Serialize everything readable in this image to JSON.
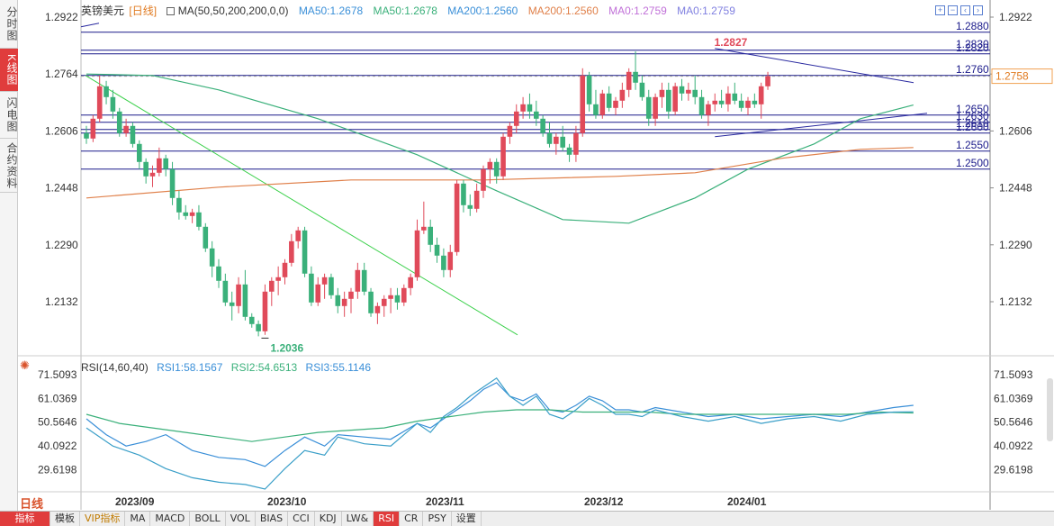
{
  "sidebar": {
    "tabs": [
      {
        "label": "分时图",
        "active": false
      },
      {
        "label": "K线图",
        "active": true
      },
      {
        "label": "闪电图",
        "active": false
      },
      {
        "label": "合约资料",
        "active": false
      }
    ]
  },
  "legend": {
    "symbol": "英镑美元",
    "period": "[日线]",
    "ma_def": "MA(50,50,200,200,0,0)",
    "items": [
      "MA50:1.2678",
      "MA50:1.2678",
      "MA200:1.2560",
      "MA200:1.2560",
      "MA0:1.2759",
      "MA0:1.2759"
    ],
    "colors": [
      "#3a8fd8",
      "#3ab07a",
      "#3a8fd8",
      "#e0804a",
      "#c070d8",
      "#8080e0"
    ]
  },
  "rsi_legend": {
    "def": "RSI(14,60,40)",
    "items": [
      "RSI1:58.1567",
      "RSI2:54.6513",
      "RSI3:55.1146"
    ],
    "colors": [
      "#3a8fd8",
      "#3ab07a",
      "#3a8fd8"
    ]
  },
  "price_axis": {
    "labels": [
      "1.2922",
      "1.2764",
      "1.2606",
      "1.2448",
      "1.2290",
      "1.2132"
    ],
    "current": "1.2758"
  },
  "rsi_axis": {
    "labels": [
      "71.5093",
      "61.0369",
      "50.5646",
      "40.0922",
      "29.6198"
    ]
  },
  "annotations": {
    "high": "1.2827",
    "low": "1.2036"
  },
  "levels": [
    "1.2880",
    "1.2830",
    "1.2820",
    "1.2760",
    "1.2650",
    "1.2630",
    "1.2610",
    "1.2600",
    "1.2550",
    "1.2500"
  ],
  "date_labels": [
    "2023/09",
    "2023/10",
    "2023/11",
    "2023/12",
    "2024/01"
  ],
  "period_button": "日线",
  "bottom_tabs": [
    "指标",
    "模板",
    "VIP指标",
    "MA",
    "MACD",
    "BOLL",
    "VOL",
    "BIAS",
    "CCI",
    "KDJ",
    "LW&",
    "RSI",
    "CR",
    "PSY",
    "设置"
  ],
  "active_bottom_tab": "RSI",
  "colors": {
    "up": "#e04a5a",
    "down": "#3ab07a",
    "level": "#1a1a8a",
    "ma50": "#3ab07a",
    "ma200": "#e0804a",
    "trend": "#2a2aa0",
    "downtrend": "#3ad04a"
  },
  "chart_data": {
    "type": "candlestick",
    "title": "英镑美元 [日线]",
    "ylim": [
      1.2036,
      1.2922
    ],
    "candles": [
      [
        1.26,
        1.262,
        1.257,
        1.2585
      ],
      [
        1.2585,
        1.265,
        1.2575,
        1.264
      ],
      [
        1.264,
        1.276,
        1.263,
        1.273
      ],
      [
        1.273,
        1.2745,
        1.268,
        1.27
      ],
      [
        1.27,
        1.272,
        1.264,
        1.266
      ],
      [
        1.266,
        1.267,
        1.259,
        1.26
      ],
      [
        1.26,
        1.264,
        1.259,
        1.262
      ],
      [
        1.262,
        1.263,
        1.256,
        1.257
      ],
      [
        1.257,
        1.258,
        1.25,
        1.252
      ],
      [
        1.252,
        1.253,
        1.246,
        1.248
      ],
      [
        1.248,
        1.251,
        1.245,
        1.249
      ],
      [
        1.249,
        1.256,
        1.248,
        1.253
      ],
      [
        1.253,
        1.254,
        1.248,
        1.25
      ],
      [
        1.25,
        1.252,
        1.24,
        1.242
      ],
      [
        1.242,
        1.244,
        1.236,
        1.238
      ],
      [
        1.238,
        1.24,
        1.236,
        1.237
      ],
      [
        1.237,
        1.239,
        1.235,
        1.238
      ],
      [
        1.238,
        1.24,
        1.233,
        1.234
      ],
      [
        1.234,
        1.235,
        1.227,
        1.228
      ],
      [
        1.228,
        1.23,
        1.22,
        1.223
      ],
      [
        1.223,
        1.225,
        1.217,
        1.219
      ],
      [
        1.219,
        1.221,
        1.212,
        1.213
      ],
      [
        1.213,
        1.216,
        1.208,
        1.212
      ],
      [
        1.212,
        1.22,
        1.21,
        1.218
      ],
      [
        1.218,
        1.222,
        1.208,
        1.209
      ],
      [
        1.209,
        1.21,
        1.206,
        1.207
      ],
      [
        1.207,
        1.208,
        1.2036,
        1.205
      ],
      [
        1.205,
        1.218,
        1.204,
        1.216
      ],
      [
        1.216,
        1.22,
        1.212,
        1.219
      ],
      [
        1.219,
        1.223,
        1.215,
        1.22
      ],
      [
        1.22,
        1.225,
        1.218,
        1.224
      ],
      [
        1.224,
        1.232,
        1.223,
        1.23
      ],
      [
        1.23,
        1.234,
        1.228,
        1.233
      ],
      [
        1.233,
        1.234,
        1.22,
        1.221
      ],
      [
        1.221,
        1.223,
        1.212,
        1.213
      ],
      [
        1.213,
        1.22,
        1.212,
        1.218
      ],
      [
        1.218,
        1.221,
        1.214,
        1.22
      ],
      [
        1.22,
        1.221,
        1.214,
        1.215
      ],
      [
        1.215,
        1.217,
        1.21,
        1.212
      ],
      [
        1.212,
        1.216,
        1.209,
        1.214
      ],
      [
        1.214,
        1.217,
        1.21,
        1.216
      ],
      [
        1.216,
        1.224,
        1.214,
        1.222
      ],
      [
        1.222,
        1.224,
        1.215,
        1.216
      ],
      [
        1.216,
        1.217,
        1.209,
        1.21
      ],
      [
        1.21,
        1.213,
        1.207,
        1.212
      ],
      [
        1.212,
        1.215,
        1.209,
        1.214
      ],
      [
        1.214,
        1.217,
        1.21,
        1.215
      ],
      [
        1.215,
        1.217,
        1.211,
        1.213
      ],
      [
        1.213,
        1.218,
        1.212,
        1.217
      ],
      [
        1.217,
        1.221,
        1.215,
        1.22
      ],
      [
        1.22,
        1.236,
        1.219,
        1.233
      ],
      [
        1.233,
        1.241,
        1.232,
        1.234
      ],
      [
        1.234,
        1.236,
        1.227,
        1.229
      ],
      [
        1.229,
        1.231,
        1.224,
        1.226
      ],
      [
        1.226,
        1.228,
        1.22,
        1.222
      ],
      [
        1.222,
        1.229,
        1.22,
        1.227
      ],
      [
        1.227,
        1.247,
        1.226,
        1.246
      ],
      [
        1.246,
        1.247,
        1.238,
        1.24
      ],
      [
        1.24,
        1.243,
        1.237,
        1.239
      ],
      [
        1.239,
        1.246,
        1.238,
        1.244
      ],
      [
        1.244,
        1.251,
        1.242,
        1.25
      ],
      [
        1.25,
        1.253,
        1.246,
        1.252
      ],
      [
        1.252,
        1.253,
        1.246,
        1.248
      ],
      [
        1.248,
        1.26,
        1.247,
        1.259
      ],
      [
        1.259,
        1.263,
        1.257,
        1.262
      ],
      [
        1.262,
        1.268,
        1.26,
        1.266
      ],
      [
        1.266,
        1.27,
        1.264,
        1.268
      ],
      [
        1.268,
        1.271,
        1.264,
        1.266
      ],
      [
        1.266,
        1.269,
        1.262,
        1.264
      ],
      [
        1.264,
        1.265,
        1.259,
        1.26
      ],
      [
        1.26,
        1.263,
        1.256,
        1.257
      ],
      [
        1.257,
        1.26,
        1.254,
        1.259
      ],
      [
        1.259,
        1.262,
        1.255,
        1.256
      ],
      [
        1.256,
        1.257,
        1.252,
        1.254
      ],
      [
        1.254,
        1.262,
        1.252,
        1.26
      ],
      [
        1.26,
        1.278,
        1.259,
        1.276
      ],
      [
        1.276,
        1.277,
        1.266,
        1.268
      ],
      [
        1.268,
        1.272,
        1.264,
        1.265
      ],
      [
        1.265,
        1.272,
        1.264,
        1.271
      ],
      [
        1.271,
        1.273,
        1.266,
        1.267
      ],
      [
        1.267,
        1.27,
        1.265,
        1.269
      ],
      [
        1.269,
        1.274,
        1.267,
        1.272
      ],
      [
        1.272,
        1.278,
        1.27,
        1.277
      ],
      [
        1.277,
        1.2827,
        1.272,
        1.274
      ],
      [
        1.274,
        1.276,
        1.269,
        1.27
      ],
      [
        1.27,
        1.272,
        1.262,
        1.264
      ],
      [
        1.264,
        1.271,
        1.262,
        1.27
      ],
      [
        1.27,
        1.274,
        1.267,
        1.272
      ],
      [
        1.272,
        1.274,
        1.264,
        1.266
      ],
      [
        1.266,
        1.274,
        1.265,
        1.273
      ],
      [
        1.273,
        1.275,
        1.269,
        1.271
      ],
      [
        1.271,
        1.274,
        1.269,
        1.272
      ],
      [
        1.272,
        1.276,
        1.268,
        1.27
      ],
      [
        1.27,
        1.272,
        1.264,
        1.265
      ],
      [
        1.265,
        1.269,
        1.262,
        1.268
      ],
      [
        1.268,
        1.271,
        1.266,
        1.269
      ],
      [
        1.269,
        1.272,
        1.267,
        1.268
      ],
      [
        1.268,
        1.273,
        1.266,
        1.271
      ],
      [
        1.271,
        1.274,
        1.268,
        1.269
      ],
      [
        1.269,
        1.271,
        1.266,
        1.267
      ],
      [
        1.267,
        1.27,
        1.265,
        1.269
      ],
      [
        1.269,
        1.271,
        1.267,
        1.268
      ],
      [
        1.268,
        1.274,
        1.264,
        1.273
      ],
      [
        1.273,
        1.277,
        1.272,
        1.2758
      ]
    ],
    "ma50": [
      [
        0,
        1.2764
      ],
      [
        10,
        1.276
      ],
      [
        20,
        1.272
      ],
      [
        35,
        1.264
      ],
      [
        50,
        1.254
      ],
      [
        62,
        1.244
      ],
      [
        72,
        1.236
      ],
      [
        82,
        1.235
      ],
      [
        92,
        1.242
      ],
      [
        100,
        1.25
      ],
      [
        110,
        1.257
      ],
      [
        117,
        1.264
      ],
      [
        125,
        1.2678
      ]
    ],
    "ma200": [
      [
        0,
        1.242
      ],
      [
        20,
        1.245
      ],
      [
        40,
        1.247
      ],
      [
        60,
        1.247
      ],
      [
        80,
        1.248
      ],
      [
        92,
        1.249
      ],
      [
        105,
        1.253
      ],
      [
        117,
        1.2555
      ],
      [
        125,
        1.256
      ]
    ],
    "rsi": {
      "ylim": [
        20,
        80
      ],
      "rsi1": [
        [
          0,
          52
        ],
        [
          3,
          45
        ],
        [
          6,
          40
        ],
        [
          9,
          42
        ],
        [
          12,
          45
        ],
        [
          16,
          38
        ],
        [
          20,
          35
        ],
        [
          24,
          34
        ],
        [
          27,
          31
        ],
        [
          30,
          38
        ],
        [
          33,
          44
        ],
        [
          36,
          40
        ],
        [
          38,
          45
        ],
        [
          42,
          44
        ],
        [
          46,
          43
        ],
        [
          50,
          50
        ],
        [
          52,
          48
        ],
        [
          54,
          52
        ],
        [
          56,
          56
        ],
        [
          58,
          60
        ],
        [
          60,
          65
        ],
        [
          62,
          68
        ],
        [
          64,
          62
        ],
        [
          66,
          60
        ],
        [
          68,
          63
        ],
        [
          70,
          56
        ],
        [
          72,
          55
        ],
        [
          74,
          58
        ],
        [
          76,
          62
        ],
        [
          78,
          60
        ],
        [
          80,
          56
        ],
        [
          82,
          56
        ],
        [
          84,
          55
        ],
        [
          86,
          57
        ],
        [
          90,
          55
        ],
        [
          94,
          53
        ],
        [
          98,
          54
        ],
        [
          102,
          52
        ],
        [
          106,
          53
        ],
        [
          110,
          54
        ],
        [
          114,
          53
        ],
        [
          118,
          55
        ],
        [
          122,
          57
        ],
        [
          125,
          58
        ]
      ],
      "rsi2": [
        [
          0,
          54
        ],
        [
          5,
          50
        ],
        [
          10,
          48
        ],
        [
          15,
          46
        ],
        [
          20,
          44
        ],
        [
          25,
          42
        ],
        [
          30,
          44
        ],
        [
          35,
          46
        ],
        [
          40,
          47
        ],
        [
          45,
          48
        ],
        [
          50,
          51
        ],
        [
          55,
          53
        ],
        [
          60,
          55
        ],
        [
          65,
          56
        ],
        [
          70,
          56
        ],
        [
          75,
          55
        ],
        [
          80,
          55
        ],
        [
          85,
          55
        ],
        [
          90,
          54
        ],
        [
          95,
          54
        ],
        [
          100,
          54
        ],
        [
          105,
          54
        ],
        [
          110,
          54
        ],
        [
          115,
          54
        ],
        [
          120,
          55
        ],
        [
          125,
          54.6
        ]
      ],
      "rsi3": [
        [
          0,
          48
        ],
        [
          4,
          40
        ],
        [
          8,
          36
        ],
        [
          12,
          30
        ],
        [
          16,
          26
        ],
        [
          20,
          24
        ],
        [
          24,
          23
        ],
        [
          27,
          21
        ],
        [
          30,
          30
        ],
        [
          33,
          38
        ],
        [
          36,
          36
        ],
        [
          38,
          44
        ],
        [
          42,
          41
        ],
        [
          46,
          40
        ],
        [
          50,
          50
        ],
        [
          52,
          46
        ],
        [
          54,
          53
        ],
        [
          56,
          57
        ],
        [
          58,
          62
        ],
        [
          60,
          66
        ],
        [
          62,
          70
        ],
        [
          64,
          62
        ],
        [
          66,
          58
        ],
        [
          68,
          62
        ],
        [
          70,
          54
        ],
        [
          72,
          52
        ],
        [
          74,
          56
        ],
        [
          76,
          61
        ],
        [
          78,
          58
        ],
        [
          80,
          54
        ],
        [
          82,
          54
        ],
        [
          84,
          53
        ],
        [
          86,
          56
        ],
        [
          90,
          53
        ],
        [
          94,
          51
        ],
        [
          98,
          53
        ],
        [
          102,
          50
        ],
        [
          106,
          52
        ],
        [
          110,
          53
        ],
        [
          114,
          51
        ],
        [
          118,
          54
        ],
        [
          122,
          55
        ],
        [
          125,
          55.1
        ]
      ]
    }
  }
}
